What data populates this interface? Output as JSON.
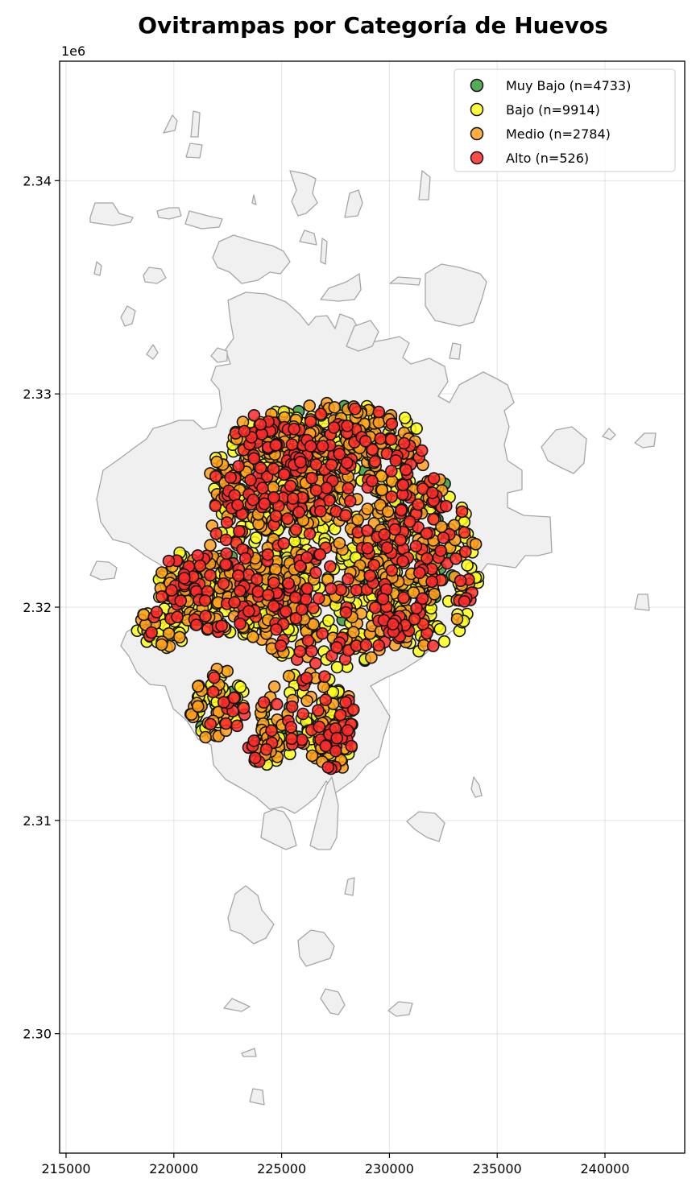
{
  "chart_data": {
    "type": "scatter",
    "title": "Ovitrampas por Categoría de Huevos",
    "xlabel": "",
    "ylabel": "",
    "xlim": [
      214700,
      243700
    ],
    "ylim": [
      2294400,
      2345600
    ],
    "x_ticks": [
      "215000",
      "220000",
      "225000",
      "230000",
      "235000",
      "240000"
    ],
    "y_ticks": [
      "2.30",
      "2.31",
      "2.32",
      "2.33",
      "2.34"
    ],
    "y_offset_label": "1e6",
    "grid": true,
    "legend_position": "top-right",
    "colors": {
      "muy_bajo": "#3a9b3a",
      "bajo": "#ffff1a",
      "medio": "#ff9f1a",
      "alto": "#ff2a2a",
      "basemap_fill": "#f0f0f0",
      "basemap_stroke": "#a6a6a6",
      "marker_edge": "#141414"
    },
    "series": [
      {
        "name": "Muy Bajo (n=4733)",
        "color": "#3a9b3a",
        "count": 4733
      },
      {
        "name": "Bajo (n=9914)",
        "color": "#ffff1a",
        "count": 9914
      },
      {
        "name": "Medio (n=2784)",
        "color": "#ff9f1a",
        "count": 2784
      },
      {
        "name": "Alto (n=526)",
        "color": "#ff2a2a",
        "count": 526
      }
    ]
  }
}
